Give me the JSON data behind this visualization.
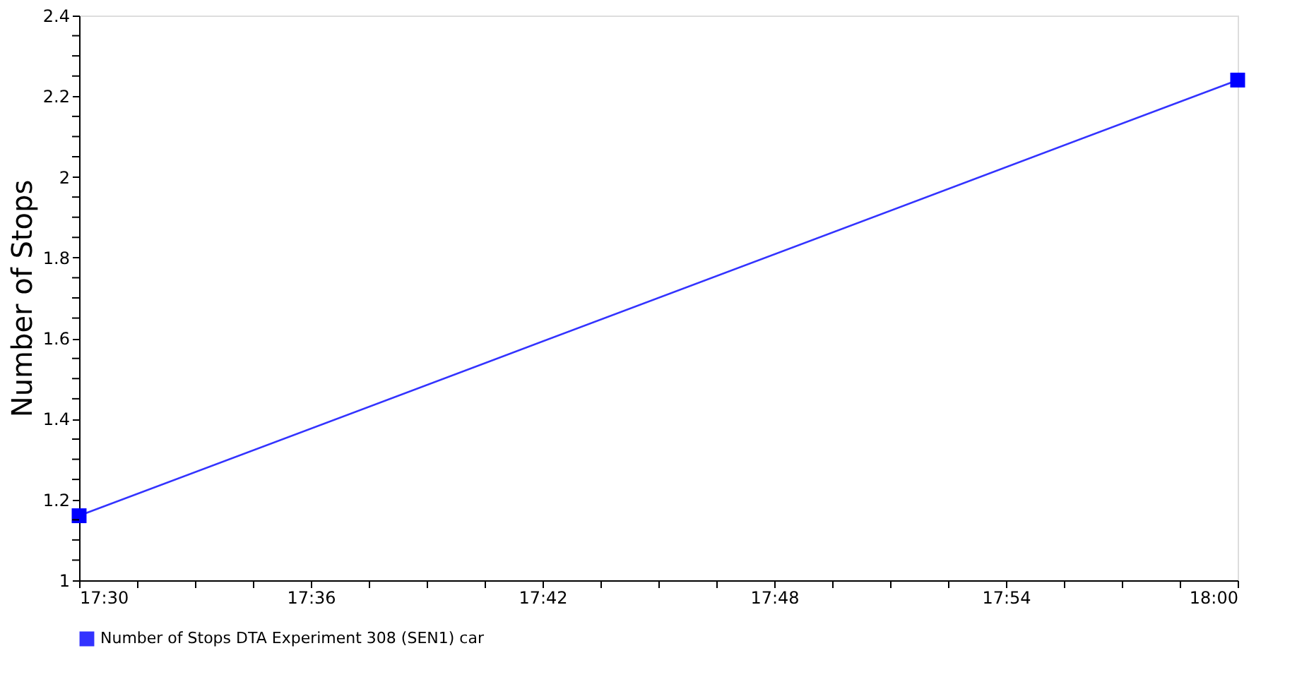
{
  "chart_data": {
    "type": "line",
    "ylabel": "Number of Stops",
    "x": [
      17.5,
      18.0
    ],
    "series": [
      {
        "name": "Number of Stops DTA Experiment 308 (SEN1) car",
        "color": "#0000ff",
        "values": [
          1.16,
          2.24
        ]
      }
    ],
    "xlim": [
      17.5,
      18.0
    ],
    "xticks": [
      {
        "value": 17.5,
        "label": "17:30"
      },
      {
        "value": 17.525,
        "label": null
      },
      {
        "value": 17.55,
        "label": null
      },
      {
        "value": 17.575,
        "label": null
      },
      {
        "value": 17.6,
        "label": "17:36"
      },
      {
        "value": 17.625,
        "label": null
      },
      {
        "value": 17.65,
        "label": null
      },
      {
        "value": 17.675,
        "label": null
      },
      {
        "value": 17.7,
        "label": "17:42"
      },
      {
        "value": 17.725,
        "label": null
      },
      {
        "value": 17.75,
        "label": null
      },
      {
        "value": 17.775,
        "label": null
      },
      {
        "value": 17.8,
        "label": "17:48"
      },
      {
        "value": 17.825,
        "label": null
      },
      {
        "value": 17.85,
        "label": null
      },
      {
        "value": 17.875,
        "label": null
      },
      {
        "value": 17.9,
        "label": "17:54"
      },
      {
        "value": 17.925,
        "label": null
      },
      {
        "value": 17.95,
        "label": null
      },
      {
        "value": 17.975,
        "label": null
      },
      {
        "value": 18.0,
        "label": "18:00"
      }
    ],
    "ylim": [
      1,
      2.4
    ],
    "yticks": [
      1,
      {
        "value": 1.05,
        "label": null
      },
      {
        "value": 1.1,
        "label": null
      },
      {
        "value": 1.15,
        "label": null
      },
      1.2,
      {
        "value": 1.25,
        "label": null
      },
      {
        "value": 1.3,
        "label": null
      },
      {
        "value": 1.35,
        "label": null
      },
      1.4,
      {
        "value": 1.45,
        "label": null
      },
      {
        "value": 1.5,
        "label": null
      },
      {
        "value": 1.55,
        "label": null
      },
      1.6,
      {
        "value": 1.65,
        "label": null
      },
      {
        "value": 1.7,
        "label": null
      },
      {
        "value": 1.75,
        "label": null
      },
      1.8,
      {
        "value": 1.85,
        "label": null
      },
      {
        "value": 1.9,
        "label": null
      },
      {
        "value": 1.95,
        "label": null
      },
      2,
      {
        "value": 2.05,
        "label": null
      },
      {
        "value": 2.1,
        "label": null
      },
      {
        "value": 2.15,
        "label": null
      },
      2.2,
      {
        "value": 2.25,
        "label": null
      },
      {
        "value": 2.3,
        "label": null
      },
      {
        "value": 2.35,
        "label": null
      },
      2.4
    ],
    "grid": false,
    "legend": "bottom",
    "marker": "square",
    "line_style": "solid"
  }
}
